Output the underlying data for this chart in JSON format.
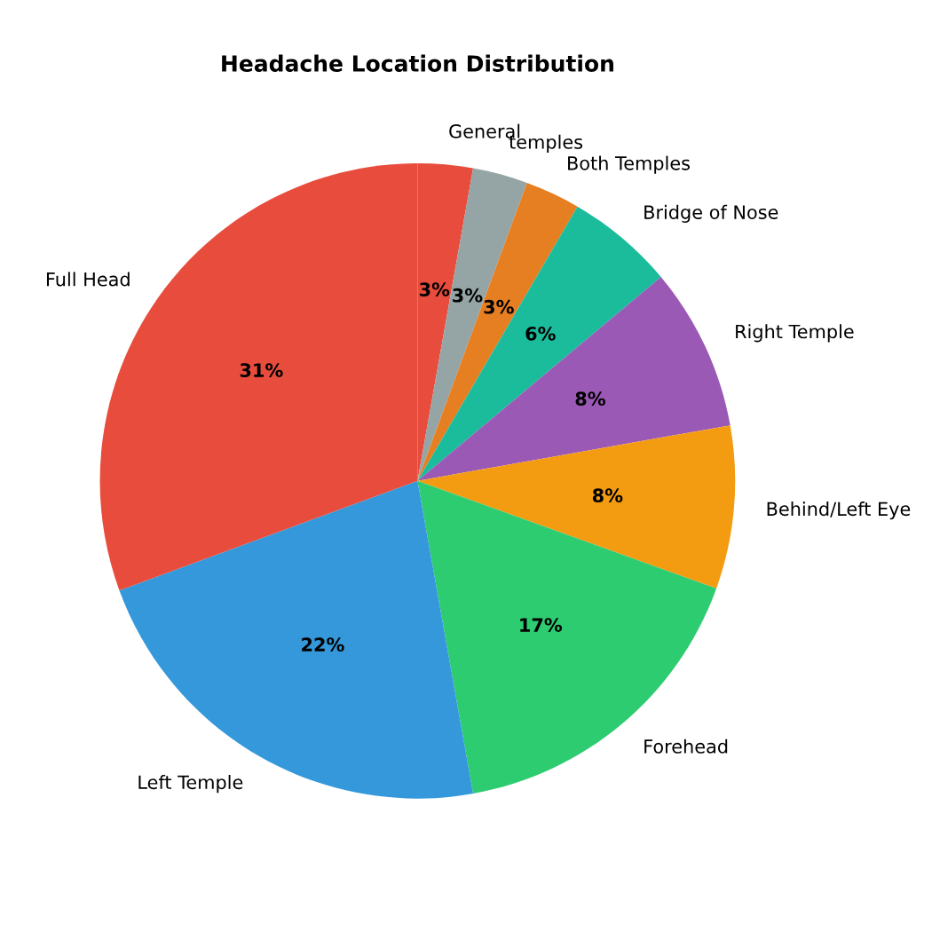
{
  "chart_data": {
    "type": "pie",
    "title": "Headache Location Distribution",
    "categories": [
      "General",
      "temples",
      "Both Temples",
      "Bridge of Nose",
      "Right Temple",
      "Behind/Left Eye",
      "Forehead",
      "Left Temple",
      "Full Head"
    ],
    "values": [
      2.8,
      2.8,
      2.8,
      5.5,
      8.3,
      8.3,
      16.7,
      22.2,
      30.6
    ],
    "value_labels": [
      "3%",
      "3%",
      "3%",
      "6%",
      "8%",
      "8%",
      "17%",
      "22%",
      "31%"
    ],
    "colors": [
      "#e74c3c",
      "#95a5a6",
      "#e67e22",
      "#1abc9c",
      "#9b59b6",
      "#f39c12",
      "#2ecc71",
      "#3498db",
      "#e74c3c"
    ]
  }
}
